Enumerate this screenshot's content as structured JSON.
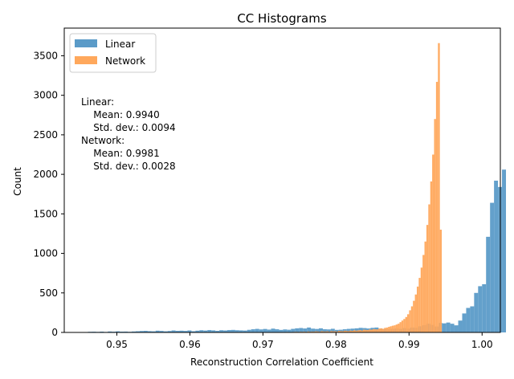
{
  "chart_data": {
    "type": "bar",
    "subtype": "overlapping-histogram",
    "title": "CC Histograms",
    "xlabel": "Reconstruction Correlation Coefficient",
    "ylabel": "Count",
    "xlim": [
      0.9428,
      1.0025
    ],
    "ylim": [
      0,
      3850
    ],
    "xticks": [
      0.95,
      0.96,
      0.97,
      0.98,
      0.99,
      1.0
    ],
    "xtick_labels": [
      "0.95",
      "0.96",
      "0.97",
      "0.98",
      "0.99",
      "1.00"
    ],
    "yticks": [
      0,
      500,
      1000,
      1500,
      2000,
      2500,
      3000,
      3500
    ],
    "ytick_labels": [
      "0",
      "500",
      "1000",
      "1500",
      "2000",
      "2500",
      "3000",
      "3500"
    ],
    "grid": false,
    "legend_position": "top-left",
    "series": [
      {
        "name": "Linear",
        "color": "#5b9bc8",
        "bin_start": 0.9455,
        "bin_width": 0.000545,
        "counts": [
          5,
          8,
          9,
          7,
          10,
          6,
          12,
          9,
          14,
          10,
          11,
          8,
          12,
          15,
          18,
          20,
          16,
          14,
          22,
          19,
          14,
          18,
          25,
          20,
          22,
          19,
          25,
          15,
          22,
          28,
          24,
          30,
          26,
          20,
          28,
          25,
          30,
          32,
          28,
          26,
          24,
          33,
          40,
          45,
          38,
          44,
          36,
          48,
          40,
          32,
          38,
          34,
          45,
          52,
          56,
          50,
          62,
          48,
          44,
          52,
          40,
          38,
          46,
          32,
          34,
          40,
          45,
          48,
          52,
          58,
          55,
          50,
          58,
          62,
          48,
          44,
          40,
          46,
          50,
          45,
          55,
          48,
          62,
          60,
          78,
          92,
          110,
          95,
          75,
          120,
          115,
          125,
          110,
          90,
          150,
          240,
          310,
          330,
          500,
          585,
          610,
          1210,
          1640,
          1920,
          1840,
          2060
        ]
      },
      {
        "name": "Network",
        "color": "#ffa85c",
        "bin_start": 0.9716,
        "bin_width": 0.000263,
        "counts": [
          3,
          2,
          4,
          3,
          5,
          4,
          6,
          4,
          5,
          6,
          7,
          8,
          6,
          9,
          8,
          10,
          7,
          12,
          9,
          11,
          10,
          14,
          12,
          9,
          16,
          13,
          12,
          15,
          10,
          18,
          14,
          16,
          12,
          20,
          18,
          15,
          22,
          19,
          17,
          24,
          20,
          28,
          22,
          26,
          30,
          24,
          35,
          32,
          30,
          38,
          34,
          42,
          40,
          38,
          48,
          52,
          46,
          58,
          62,
          70,
          78,
          85,
          90,
          100,
          110,
          130,
          150,
          170,
          195,
          230,
          280,
          330,
          400,
          480,
          580,
          690,
          820,
          980,
          1150,
          1360,
          1620,
          1910,
          2250,
          2700,
          3170,
          3660,
          1300
        ]
      }
    ],
    "annotation": [
      "Linear:",
      "    Mean: 0.9940",
      "    Std. dev.: 0.0094",
      "Network:",
      "    Mean: 0.9981",
      "    Std. dev.: 0.0028"
    ]
  }
}
